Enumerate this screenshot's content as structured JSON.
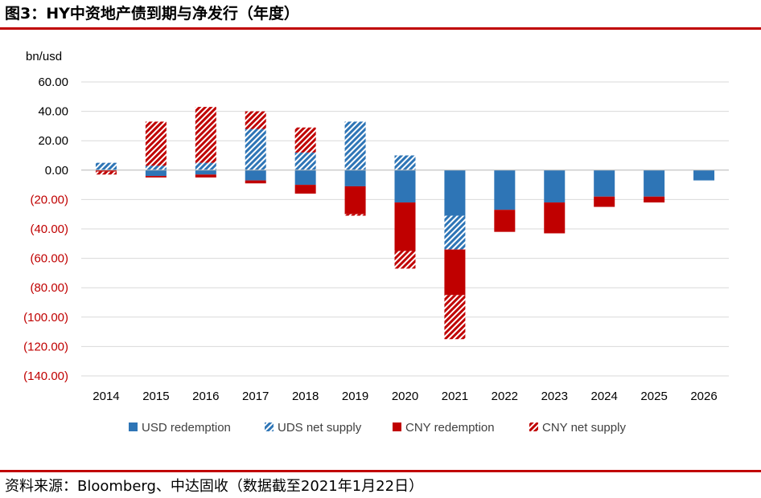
{
  "header": {
    "title": "图3：HY中资地产债到期与净发行（年度）"
  },
  "footer": {
    "source": "资料来源：Bloomberg、中达固收（数据截至2021年1月22日）"
  },
  "chart_data": {
    "type": "bar",
    "stacked": true,
    "ylabel": "bn/usd",
    "ylim": [
      -140,
      60
    ],
    "yticks": [
      60,
      40,
      20,
      0,
      -20,
      -40,
      -60,
      -80,
      -100,
      -120,
      -140
    ],
    "ytick_labels": [
      "60.00",
      "40.00",
      "20.00",
      "0.00",
      "(20.00)",
      "(40.00)",
      "(60.00)",
      "(80.00)",
      "(100.00)",
      "(120.00)",
      "(140.00)"
    ],
    "grid": true,
    "legend": "bottom",
    "categories": [
      "2014",
      "2015",
      "2016",
      "2017",
      "2018",
      "2019",
      "2020",
      "2021",
      "2022",
      "2023",
      "2024",
      "2025",
      "2026"
    ],
    "series": [
      {
        "name": "USD redemption",
        "color": "#2e75b6",
        "pattern": "solid",
        "values": [
          0,
          -4,
          -3,
          -7,
          -10,
          -11,
          -22,
          -31,
          -27,
          -22,
          -18,
          -18,
          -7
        ]
      },
      {
        "name": "UDS net supply",
        "color": "#2e75b6",
        "pattern": "hatched",
        "values": [
          5,
          3,
          5,
          28,
          12,
          33,
          10,
          -23,
          0,
          0,
          0,
          0,
          0
        ]
      },
      {
        "name": "CNY redemption",
        "color": "#c00000",
        "pattern": "solid",
        "values": [
          -1,
          -1,
          -2,
          -2,
          -6,
          -19,
          -33,
          -31,
          -15,
          -21,
          -7,
          -4,
          0
        ]
      },
      {
        "name": "CNY net supply",
        "color": "#c00000",
        "pattern": "hatched",
        "values": [
          -2,
          30,
          38,
          12,
          17,
          -1,
          -12,
          -30,
          0,
          0,
          0,
          0,
          0
        ]
      }
    ]
  }
}
